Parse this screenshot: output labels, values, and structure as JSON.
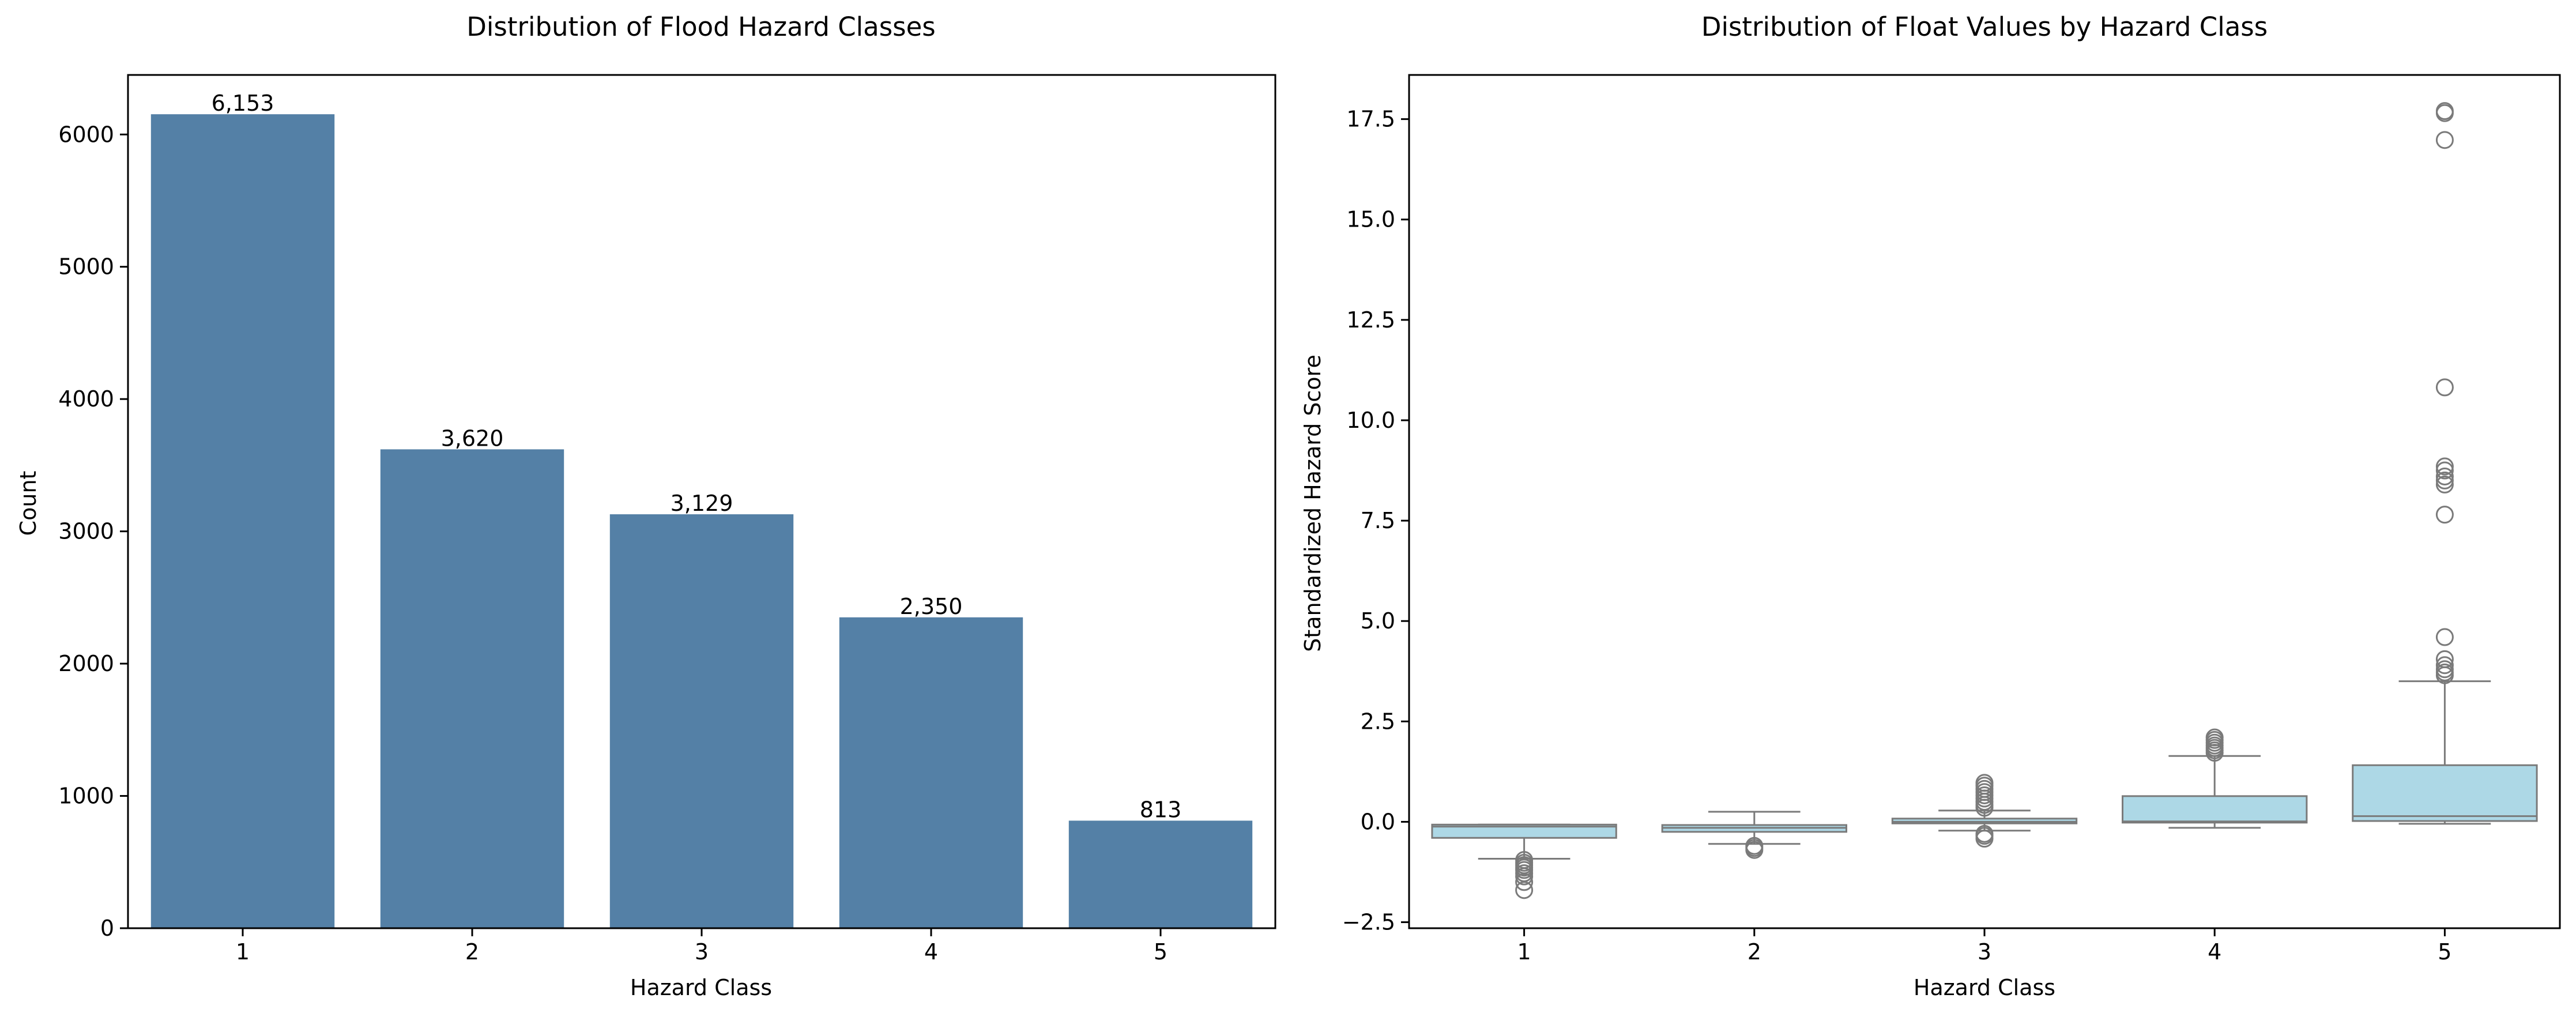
{
  "chart_data": [
    {
      "type": "bar",
      "title": "Distribution of Flood Hazard Classes",
      "xlabel": "Hazard Class",
      "ylabel": "Count",
      "categories": [
        "1",
        "2",
        "3",
        "4",
        "5"
      ],
      "values": [
        6153,
        3620,
        3129,
        2350,
        813
      ],
      "data_labels": [
        "6,153",
        "3,620",
        "3,129",
        "2,350",
        "813"
      ],
      "ylim": [
        0,
        6450
      ],
      "yticks": [
        0,
        1000,
        2000,
        3000,
        4000,
        5000,
        6000
      ],
      "ytick_labels": [
        "0",
        "1000",
        "2000",
        "3000",
        "4000",
        "5000",
        "6000"
      ],
      "grid": false,
      "colors": {
        "bar": "#5480a6"
      }
    },
    {
      "type": "box",
      "title": "Distribution of Float Values by Hazard Class",
      "xlabel": "Hazard Class",
      "ylabel": "Standardized Hazard Score",
      "categories": [
        "1",
        "2",
        "3",
        "4",
        "5"
      ],
      "boxes": [
        {
          "whislo": -0.92,
          "q1": -0.4,
          "med": -0.12,
          "q3": -0.07,
          "whishi": -0.07,
          "fliers": [
            -0.95,
            -1.02,
            -1.08,
            -1.14,
            -1.2,
            -1.28,
            -1.36,
            -1.5,
            -1.7
          ]
        },
        {
          "whislo": -0.55,
          "q1": -0.25,
          "med": -0.15,
          "q3": -0.08,
          "whishi": 0.25,
          "fliers": [
            -0.6,
            -0.65,
            -0.7
          ]
        },
        {
          "whislo": -0.22,
          "q1": -0.04,
          "med": 0.0,
          "q3": 0.08,
          "whishi": 0.28,
          "fliers": [
            0.35,
            0.42,
            0.5,
            0.58,
            0.66,
            0.74,
            0.82,
            0.9,
            0.97,
            -0.3,
            -0.35,
            -0.42
          ]
        },
        {
          "whislo": -0.15,
          "q1": -0.02,
          "med": 0.01,
          "q3": 0.64,
          "whishi": 1.64,
          "fliers": [
            1.72,
            1.78,
            1.84,
            1.9,
            1.97,
            2.04,
            2.1
          ]
        },
        {
          "whislo": -0.05,
          "q1": 0.02,
          "med": 0.14,
          "q3": 1.41,
          "whishi": 3.5,
          "fliers": [
            3.65,
            3.72,
            3.8,
            3.9,
            4.05,
            4.6,
            7.65,
            8.4,
            8.5,
            8.6,
            8.75,
            8.85,
            10.82,
            16.98,
            17.65,
            17.7
          ]
        }
      ],
      "ylim": [
        -2.65,
        18.6
      ],
      "yticks": [
        -2.5,
        0.0,
        2.5,
        5.0,
        7.5,
        10.0,
        12.5,
        15.0,
        17.5
      ],
      "ytick_labels": [
        "−2.5",
        "0.0",
        "2.5",
        "5.0",
        "7.5",
        "10.0",
        "12.5",
        "15.0",
        "17.5"
      ],
      "grid": false,
      "colors": {
        "box": "#add8e6",
        "line": "#7a7a7a",
        "flier": "#7a7a7a"
      }
    }
  ]
}
